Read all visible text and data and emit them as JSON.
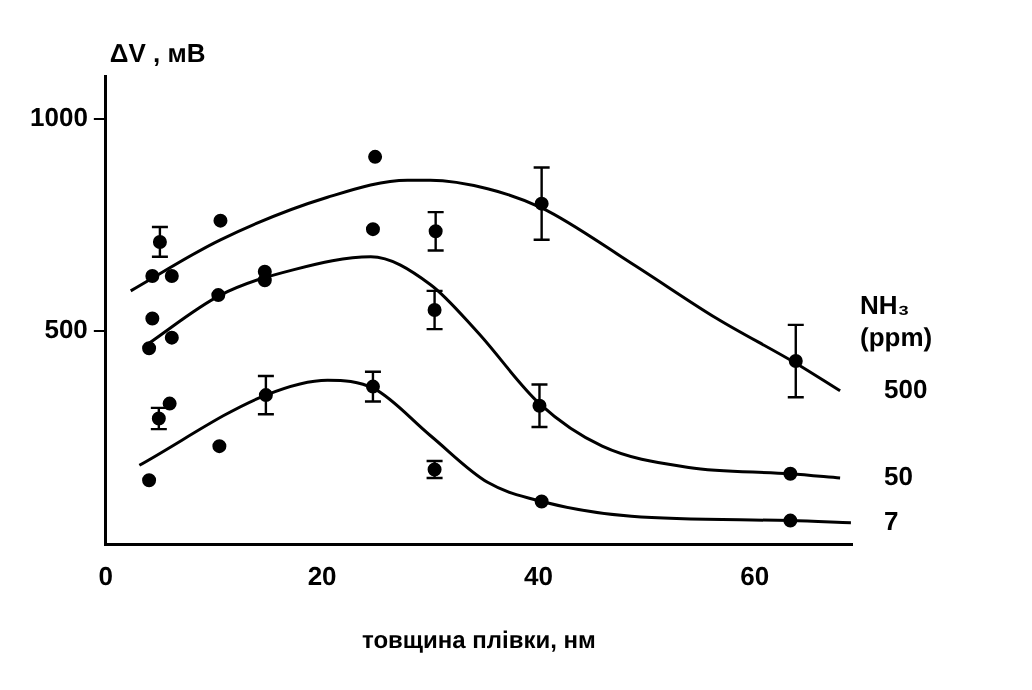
{
  "chart_data": {
    "type": "scatter",
    "xlabel": "товщина плівки, нм",
    "ylabel": "ΔV , мВ",
    "legend_title": "NH₃ (ppm)",
    "xlim": [
      0,
      69
    ],
    "xticks": [
      0,
      20,
      40,
      60
    ],
    "ylim": [
      0,
      1100
    ],
    "yticks": [
      500,
      1000
    ],
    "grid": false,
    "marker": "circle",
    "series": [
      {
        "color": "#000000",
        "x": [
          4.3,
          5,
          6.1,
          10.6,
          24.9,
          30.5,
          40.3,
          63.8
        ],
        "values": [
          630,
          710,
          630,
          760,
          910,
          735,
          800,
          430
        ],
        "errors": [
          null,
          35,
          null,
          null,
          null,
          45,
          85,
          85
        ]
      },
      {
        "color": "#000000",
        "x": [
          4,
          4.3,
          6.1,
          10.4,
          14.7,
          14.7,
          24.7,
          30.4,
          40.1,
          63.3
        ],
        "values": [
          460,
          530,
          485,
          585,
          640,
          620,
          740,
          550,
          325,
          165
        ],
        "errors": [
          null,
          null,
          null,
          null,
          null,
          null,
          null,
          45,
          50,
          null
        ]
      },
      {
        "color": "#000000",
        "x": [
          4,
          4.9,
          5.9,
          10.5,
          14.8,
          24.7,
          30.4,
          40.3,
          63.3
        ],
        "values": [
          150,
          295,
          330,
          230,
          350,
          370,
          175,
          100,
          55
        ],
        "errors": [
          null,
          25,
          null,
          null,
          45,
          35,
          20,
          null,
          null
        ]
      },
      {
        "type": "line",
        "name": "500",
        "color": "#000000",
        "marker": "none",
        "x": [
          2.3,
          10.6,
          20.5,
          27.9,
          30,
          35.3,
          40.3,
          48.6,
          56.5,
          63.8,
          67.9
        ],
        "values": [
          595,
          715,
          815,
          855,
          855,
          835,
          790,
          660,
          530,
          425,
          360
        ]
      },
      {
        "type": "line",
        "name": "50",
        "color": "#000000",
        "marker": "none",
        "x": [
          3.6,
          10.6,
          17.4,
          24.5,
          30,
          34.3,
          40.1,
          45.9,
          53.9,
          63.3,
          67.9
        ],
        "values": [
          465,
          585,
          645,
          675,
          610,
          500,
          330,
          230,
          180,
          165,
          155
        ]
      },
      {
        "type": "line",
        "name": "7",
        "color": "#000000",
        "marker": "none",
        "x": [
          3.1,
          14.8,
          20.5,
          24.8,
          30,
          35.3,
          40.3,
          48.6,
          63.3,
          68.9
        ],
        "values": [
          185,
          350,
          385,
          365,
          255,
          145,
          100,
          65,
          55,
          50
        ]
      }
    ]
  }
}
